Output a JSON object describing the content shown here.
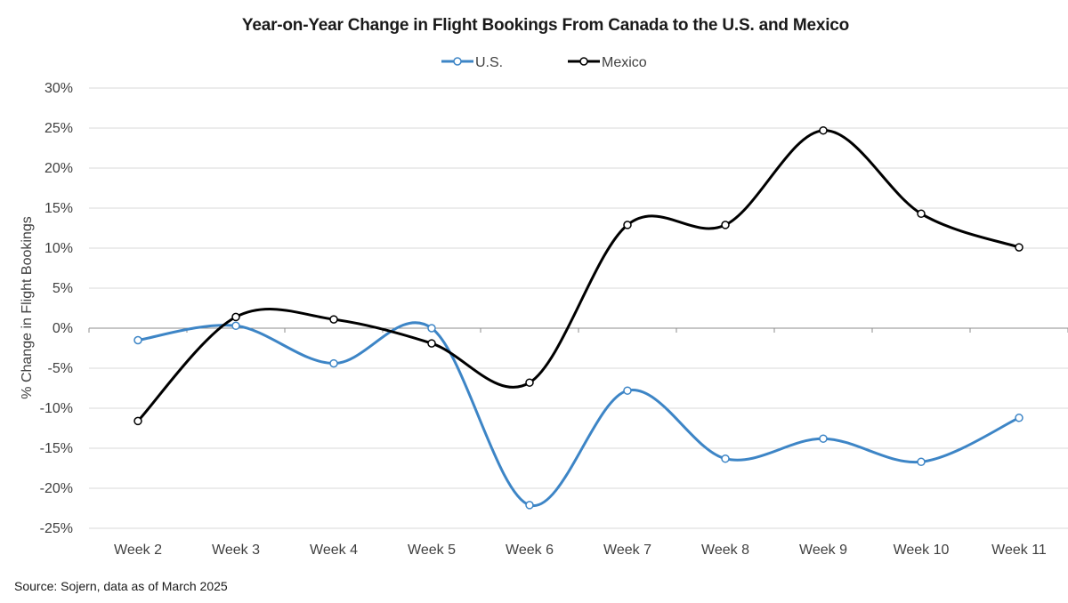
{
  "chart_data": {
    "type": "line",
    "title": "Year-on-Year Change in Flight Bookings From Canada to the U.S. and Mexico",
    "ylabel": "% Change in Flight Bookings",
    "xlabel": "",
    "categories": [
      "Week 2",
      "Week 3",
      "Week 4",
      "Week 5",
      "Week 6",
      "Week 7",
      "Week 8",
      "Week 9",
      "Week 10",
      "Week 11"
    ],
    "ylim": [
      -25,
      30
    ],
    "yticks": [
      30,
      25,
      20,
      15,
      10,
      5,
      0,
      -5,
      -10,
      -15,
      -20,
      -25
    ],
    "ytick_labels": [
      "30%",
      "25%",
      "20%",
      "15%",
      "10%",
      "5%",
      "0%",
      "-5%",
      "-10%",
      "-15%",
      "-20%",
      "-25%"
    ],
    "grid": true,
    "smooth": true,
    "legend_position": "top-center",
    "series": [
      {
        "name": "U.S.",
        "color": "#3d85c6",
        "values": [
          -1.5,
          0.3,
          -4.4,
          0.0,
          -22.1,
          -7.8,
          -16.3,
          -13.8,
          -16.7,
          -11.2
        ]
      },
      {
        "name": "Mexico",
        "color": "#000000",
        "values": [
          -11.6,
          1.4,
          1.1,
          -1.9,
          -6.8,
          12.9,
          12.9,
          24.7,
          14.3,
          10.1
        ]
      }
    ]
  },
  "source": "Source: Sojern, data as of March 2025"
}
